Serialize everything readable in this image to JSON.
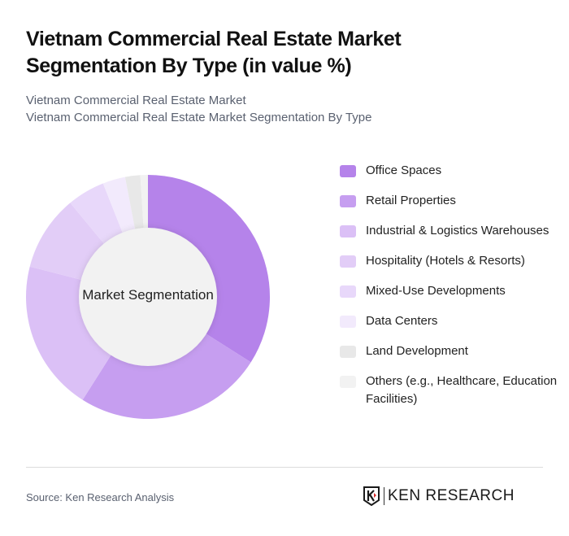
{
  "header": {
    "title": "Vietnam Commercial Real Estate Market Segmentation By Type (in value %)",
    "subtitle_line1": "Vietnam Commercial Real Estate Market",
    "subtitle_line2": "Vietnam Commercial Real Estate Market Segmentation By Type"
  },
  "chart": {
    "center_label": "Market Segmentation"
  },
  "legend": {
    "items": [
      {
        "label": "Office Spaces",
        "color": "#b583ea"
      },
      {
        "label": "Retail Properties",
        "color": "#c69ef0"
      },
      {
        "label": "Industrial & Logistics Warehouses",
        "color": "#dbc0f6"
      },
      {
        "label": "Hospitality (Hotels & Resorts)",
        "color": "#e2cdf7"
      },
      {
        "label": "Mixed-Use Developments",
        "color": "#e8d8fa"
      },
      {
        "label": "Data Centers",
        "color": "#f2eafc"
      },
      {
        "label": "Land Development",
        "color": "#e8e8e8"
      },
      {
        "label": "Others (e.g., Healthcare, Education Facilities)",
        "color": "#f2f2f2"
      }
    ]
  },
  "footer": {
    "source": "Source: Ken Research Analysis",
    "logo_text": "KEN RESEARCH"
  },
  "chart_data": {
    "type": "pie",
    "subtype": "donut",
    "title": "Vietnam Commercial Real Estate Market Segmentation By Type (in value %)",
    "center_label": "Market Segmentation",
    "categories": [
      "Office Spaces",
      "Retail Properties",
      "Industrial & Logistics Warehouses",
      "Hospitality (Hotels & Resorts)",
      "Mixed-Use Developments",
      "Data Centers",
      "Land Development",
      "Others (e.g., Healthcare, Education Facilities)"
    ],
    "values": [
      34,
      25,
      20,
      10,
      5,
      3,
      2,
      1
    ],
    "colors": [
      "#b583ea",
      "#c69ef0",
      "#dbc0f6",
      "#e2cdf7",
      "#e8d8fa",
      "#f2eafc",
      "#e8e8e8",
      "#f2f2f2"
    ],
    "legend_position": "right",
    "start_angle": "top, clockwise"
  }
}
